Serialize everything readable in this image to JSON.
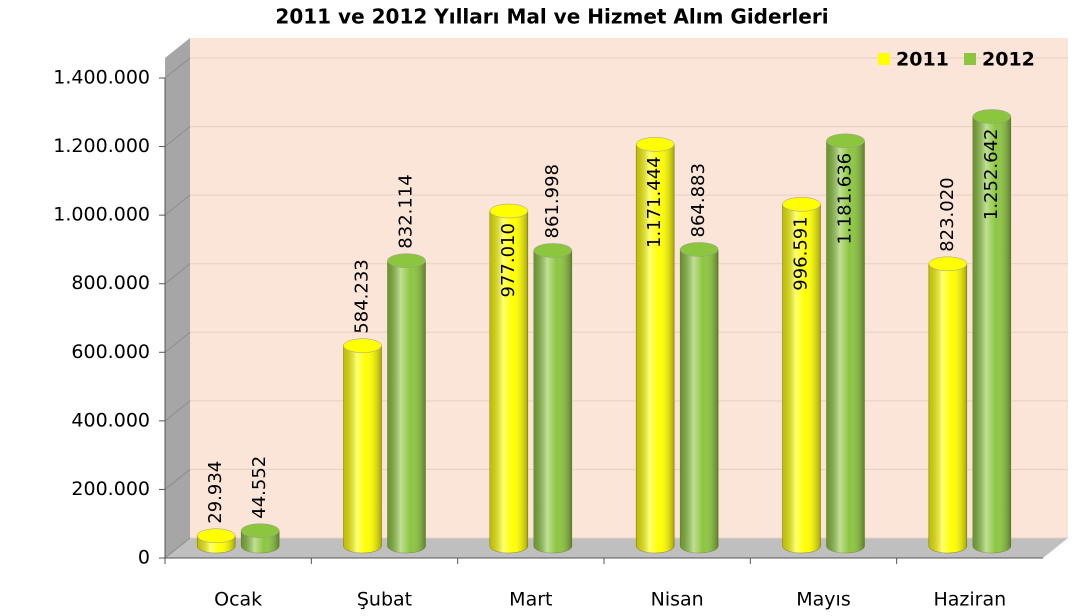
{
  "chart_data": {
    "type": "bar",
    "title": "2011 ve 2012 Yılları Mal ve Hizmet Alım Giderleri",
    "categories": [
      "Ocak",
      "Şubat",
      "Mart",
      "Nisan",
      "Mayıs",
      "Haziran"
    ],
    "series": [
      {
        "name": "2011",
        "color": "#ffff00",
        "values": [
          29934,
          584233,
          977010,
          1171444,
          996591,
          823020
        ],
        "value_labels": [
          "29.934",
          "584.233",
          "977.010",
          "1.171.444",
          "996.591",
          "823.020"
        ]
      },
      {
        "name": "2012",
        "color": "#8cc63f",
        "values": [
          44552,
          832114,
          861998,
          864883,
          1181636,
          1252642
        ],
        "value_labels": [
          "44.552",
          "832.114",
          "861.998",
          "864.883",
          "1.181.636",
          "1.252.642"
        ]
      }
    ],
    "ylim": [
      0,
      1400000
    ],
    "yticks": [
      0,
      {
        "value": 200000,
        "label": "200.000"
      },
      {
        "value": 400000,
        "label": "400.000"
      },
      {
        "value": 600000,
        "label": "600.000"
      },
      {
        "value": 800000,
        "label": "800.000"
      },
      {
        "value": 1000000,
        "label": "1.000.000"
      },
      {
        "value": 1200000,
        "label": "1.200.000"
      },
      {
        "value": 1400000,
        "label": "1.400.000"
      }
    ],
    "grid": true,
    "legend": "top-right"
  }
}
